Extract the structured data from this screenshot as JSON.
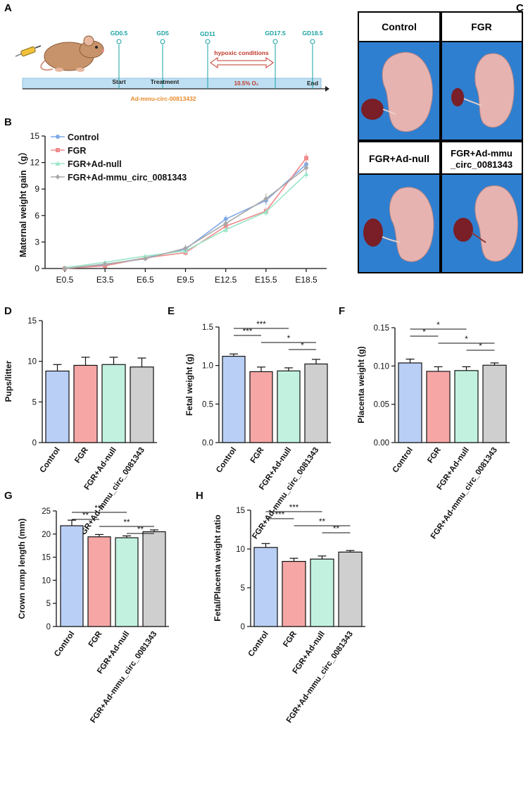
{
  "colors": {
    "control": "#b9cff5",
    "fgr": "#f7a6a6",
    "adnull": "#c2f2df",
    "adcirc": "#cfcfcf",
    "line_control": "#7fa9e8",
    "line_fgr": "#ef8c8c",
    "line_adnull": "#9be6c8",
    "line_adcirc": "#a8a8a8",
    "timeline_fill": "#bfe0f3",
    "gd_text": "#1aa0a0",
    "orange": "#e8892a",
    "red": "#c0392b"
  },
  "panelA": {
    "letter": "A",
    "gd_labels": [
      "GD0.5",
      "GD5",
      "GD11",
      "GD17.5",
      "GD18.5"
    ],
    "start_label": "Start",
    "treatment_label": "Treatment",
    "end_label": "End",
    "hypoxic_label": "hypoxic conditions",
    "o2_label": "10.5% O₂",
    "adv_label": "Ad-mmu-circ-00813432"
  },
  "panelC": {
    "letter": "C",
    "labels": [
      "Control",
      "FGR",
      "FGR+Ad-null",
      "FGR+Ad-mmu\n_circ_0081343"
    ]
  },
  "chart_data": [
    {
      "panel": "B",
      "type": "line",
      "title": "",
      "xlabel": "",
      "ylabel": "Maternal weight gain（g）",
      "categories": [
        "E0.5",
        "E3.5",
        "E6.5",
        "E9.5",
        "E12.5",
        "E15.5",
        "E18.5"
      ],
      "ylim": [
        0,
        15
      ],
      "yticks": [
        "0",
        "3",
        "6",
        "9",
        "12",
        "15"
      ],
      "series": [
        {
          "name": "Control",
          "values": [
            0.0,
            0.4,
            1.2,
            2.2,
            5.6,
            7.7,
            11.8
          ]
        },
        {
          "name": "FGR",
          "values": [
            0.0,
            0.3,
            1.2,
            1.8,
            4.8,
            6.5,
            12.5
          ]
        },
        {
          "name": "FGR+Ad-null",
          "values": [
            0.1,
            0.7,
            1.4,
            2.0,
            4.4,
            6.4,
            10.7
          ]
        },
        {
          "name": "FGR+Ad-mmu_circ_0081343",
          "values": [
            0.0,
            0.5,
            1.1,
            2.3,
            5.1,
            7.9,
            11.4
          ]
        }
      ],
      "errors": [
        [
          0.1,
          0.2,
          0.2,
          0.3,
          0.4,
          0.5,
          0.5
        ],
        [
          0.1,
          0.2,
          0.2,
          0.3,
          0.4,
          0.4,
          0.5
        ],
        [
          0.1,
          0.2,
          0.2,
          0.3,
          0.4,
          0.4,
          0.5
        ],
        [
          0.1,
          0.2,
          0.2,
          0.4,
          0.4,
          0.6,
          0.5
        ]
      ],
      "legend_position": "top-left"
    },
    {
      "panel": "D",
      "type": "bar",
      "ylabel": "Pups/litter",
      "categories": [
        "Control",
        "FGR",
        "FGR+Ad-null",
        "FGR+Ad-mmu_circ_0081343"
      ],
      "values": [
        8.8,
        9.5,
        9.6,
        9.3
      ],
      "errors": [
        0.8,
        1.0,
        0.9,
        1.1
      ],
      "ylim": [
        0,
        15
      ],
      "yticks": [
        "0",
        "5",
        "10",
        "15"
      ],
      "significance": []
    },
    {
      "panel": "E",
      "type": "bar",
      "ylabel": "Fetal weight (g)",
      "categories": [
        "Control",
        "FGR",
        "FGR+Ad-null",
        "FGR+Ad-mmu_circ_0081343"
      ],
      "values": [
        1.12,
        0.92,
        0.93,
        1.02
      ],
      "errors": [
        0.03,
        0.06,
        0.04,
        0.06
      ],
      "ylim": [
        0,
        1.5
      ],
      "yticks": [
        "0.0",
        "0.5",
        "1.0",
        "1.5"
      ],
      "significance": [
        {
          "label": "***",
          "from": 0,
          "to": 2
        },
        {
          "label": "***",
          "from": 0,
          "to": 1
        },
        {
          "label": "*",
          "from": 1,
          "to": 3
        },
        {
          "label": "*",
          "from": 2,
          "to": 3
        }
      ]
    },
    {
      "panel": "F",
      "type": "bar",
      "ylabel": "Placenta weight (g)",
      "categories": [
        "Control",
        "FGR",
        "FGR+Ad-null",
        "FGR+Ad-mmu_circ_0081343"
      ],
      "values": [
        0.104,
        0.093,
        0.094,
        0.101
      ],
      "errors": [
        0.005,
        0.006,
        0.005,
        0.003
      ],
      "ylim": [
        0,
        0.15
      ],
      "yticks": [
        "0.00",
        "0.05",
        "0.10",
        "0.15"
      ],
      "significance": [
        {
          "label": "*",
          "from": 0,
          "to": 2
        },
        {
          "label": "*",
          "from": 0,
          "to": 1
        },
        {
          "label": "*",
          "from": 1,
          "to": 3
        },
        {
          "label": "*",
          "from": 2,
          "to": 3
        }
      ]
    },
    {
      "panel": "G",
      "type": "bar",
      "ylabel": "Crown rump length (mm)",
      "categories": [
        "Control",
        "FGR",
        "FGR+Ad-null",
        "FGR+Ad-mmu_circ_0081343"
      ],
      "values": [
        21.8,
        19.4,
        19.2,
        20.5
      ],
      "errors": [
        1.2,
        0.5,
        0.4,
        0.4
      ],
      "ylim": [
        0,
        25
      ],
      "yticks": [
        "0",
        "5",
        "10",
        "15",
        "20",
        "25"
      ],
      "significance": [
        {
          "label": "***",
          "from": 0,
          "to": 2
        },
        {
          "label": "**",
          "from": 0,
          "to": 1
        },
        {
          "label": "**",
          "from": 1,
          "to": 3
        },
        {
          "label": "**",
          "from": 2,
          "to": 3
        }
      ]
    },
    {
      "panel": "H",
      "type": "bar",
      "ylabel": "Fetal/Placenta weight ratio",
      "categories": [
        "Control",
        "FGR",
        "FGR+Ad-null",
        "FGR+Ad-mmu_circ_0081343"
      ],
      "values": [
        10.2,
        8.4,
        8.7,
        9.6
      ],
      "errors": [
        0.5,
        0.4,
        0.4,
        0.2
      ],
      "ylim": [
        0,
        15
      ],
      "yticks": [
        "0",
        "5",
        "10",
        "15"
      ],
      "significance": [
        {
          "label": "***",
          "from": 0,
          "to": 2
        },
        {
          "label": "***",
          "from": 0,
          "to": 1
        },
        {
          "label": "**",
          "from": 1,
          "to": 3
        },
        {
          "label": "**",
          "from": 2,
          "to": 3
        }
      ]
    }
  ]
}
